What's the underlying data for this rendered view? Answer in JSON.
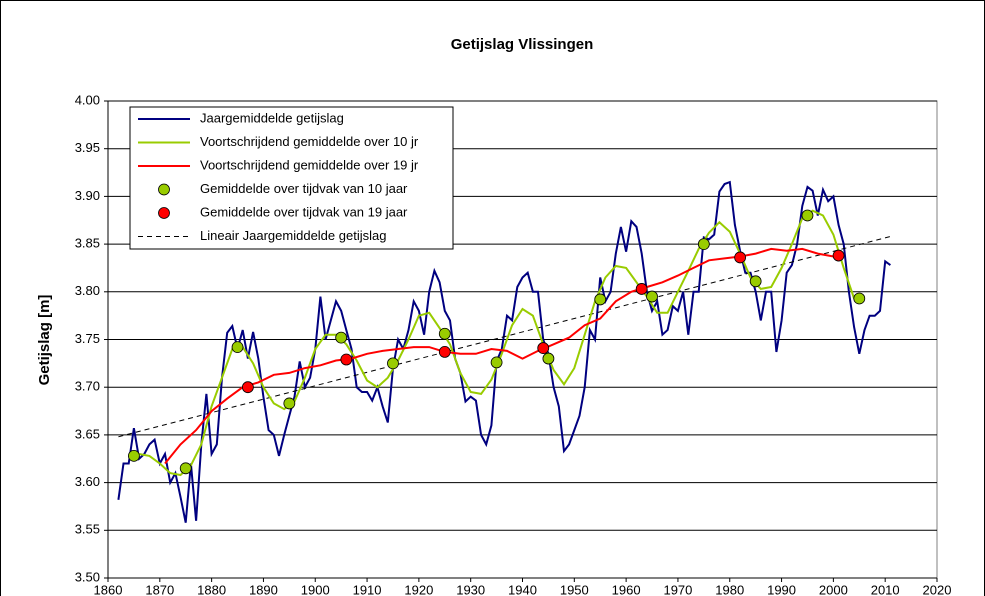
{
  "chart_data": {
    "type": "line",
    "title": "Getijslag Vlissingen",
    "y_label": "Getijslag [m]",
    "xlim": [
      1860,
      2020
    ],
    "xticks": [
      1860,
      1870,
      1880,
      1890,
      1900,
      1910,
      1920,
      1930,
      1940,
      1950,
      1960,
      1970,
      1980,
      1990,
      2000,
      2010,
      2020
    ],
    "ylim": [
      3.5,
      4.0
    ],
    "yticks": [
      {
        "value": 3.5,
        "label": "3.50"
      },
      {
        "value": 3.55,
        "label": "3.55"
      },
      {
        "value": 3.6,
        "label": "3.60"
      },
      {
        "value": 3.65,
        "label": "3.65"
      },
      {
        "value": 3.7,
        "label": "3.70"
      },
      {
        "value": 3.75,
        "label": "3.75"
      },
      {
        "value": 3.8,
        "label": "3.80"
      },
      {
        "value": 3.85,
        "label": "3.85"
      },
      {
        "value": 3.9,
        "label": "3.90"
      },
      {
        "value": 3.95,
        "label": "3.95"
      },
      {
        "value": 4.0,
        "label": "4.00"
      }
    ],
    "grid": true,
    "legend": "top-left",
    "series": [
      {
        "name": "Jaargemiddelde getijslag",
        "color": "#000080",
        "style": "line",
        "x": [
          1862,
          1863,
          1864,
          1865,
          1866,
          1867,
          1868,
          1869,
          1870,
          1871,
          1872,
          1873,
          1874,
          1875,
          1876,
          1877,
          1878,
          1879,
          1880,
          1881,
          1882,
          1883,
          1884,
          1885,
          1886,
          1887,
          1888,
          1889,
          1890,
          1891,
          1892,
          1893,
          1894,
          1895,
          1896,
          1897,
          1898,
          1899,
          1900,
          1901,
          1902,
          1903,
          1904,
          1905,
          1906,
          1907,
          1908,
          1909,
          1910,
          1911,
          1912,
          1913,
          1914,
          1915,
          1916,
          1917,
          1918,
          1919,
          1920,
          1921,
          1922,
          1923,
          1924,
          1925,
          1926,
          1927,
          1928,
          1929,
          1930,
          1931,
          1932,
          1933,
          1934,
          1935,
          1936,
          1937,
          1938,
          1939,
          1940,
          1941,
          1942,
          1943,
          1944,
          1945,
          1946,
          1947,
          1948,
          1949,
          1950,
          1951,
          1952,
          1953,
          1954,
          1955,
          1956,
          1957,
          1958,
          1959,
          1960,
          1961,
          1962,
          1963,
          1964,
          1965,
          1966,
          1967,
          1968,
          1969,
          1970,
          1971,
          1972,
          1973,
          1974,
          1975,
          1976,
          1977,
          1978,
          1979,
          1980,
          1981,
          1982,
          1983,
          1984,
          1985,
          1986,
          1987,
          1988,
          1989,
          1990,
          1991,
          1992,
          1993,
          1994,
          1995,
          1996,
          1997,
          1998,
          1999,
          2000,
          2001,
          2002,
          2003,
          2004,
          2005,
          2006,
          2007,
          2008,
          2009,
          2010,
          2011
        ],
        "values": [
          3.582,
          3.62,
          3.62,
          3.657,
          3.625,
          3.63,
          3.64,
          3.645,
          3.62,
          3.63,
          3.6,
          3.61,
          3.585,
          3.558,
          3.62,
          3.56,
          3.64,
          3.693,
          3.63,
          3.64,
          3.71,
          3.757,
          3.764,
          3.74,
          3.76,
          3.73,
          3.758,
          3.73,
          3.69,
          3.655,
          3.65,
          3.628,
          3.65,
          3.67,
          3.69,
          3.727,
          3.7,
          3.71,
          3.74,
          3.795,
          3.75,
          3.77,
          3.79,
          3.78,
          3.76,
          3.74,
          3.7,
          3.695,
          3.695,
          3.686,
          3.7,
          3.68,
          3.663,
          3.72,
          3.75,
          3.74,
          3.76,
          3.79,
          3.78,
          3.755,
          3.8,
          3.822,
          3.81,
          3.78,
          3.77,
          3.73,
          3.715,
          3.685,
          3.69,
          3.686,
          3.65,
          3.64,
          3.66,
          3.727,
          3.74,
          3.775,
          3.77,
          3.805,
          3.815,
          3.82,
          3.8,
          3.8,
          3.75,
          3.735,
          3.7,
          3.68,
          3.633,
          3.64,
          3.655,
          3.67,
          3.7,
          3.76,
          3.75,
          3.815,
          3.79,
          3.8,
          3.84,
          3.868,
          3.842,
          3.874,
          3.868,
          3.84,
          3.8,
          3.78,
          3.79,
          3.755,
          3.76,
          3.785,
          3.78,
          3.8,
          3.755,
          3.8,
          3.8,
          3.857,
          3.855,
          3.86,
          3.905,
          3.913,
          3.915,
          3.87,
          3.843,
          3.82,
          3.82,
          3.8,
          3.77,
          3.8,
          3.8,
          3.737,
          3.77,
          3.82,
          3.828,
          3.85,
          3.89,
          3.91,
          3.906,
          3.88,
          3.907,
          3.895,
          3.9,
          3.87,
          3.85,
          3.8,
          3.763,
          3.735,
          3.76,
          3.775,
          3.775,
          3.78,
          3.832,
          3.828
        ]
      },
      {
        "name": "Voortschrijdend gemiddelde over 10 jr",
        "color": "#99cc00",
        "style": "line",
        "x": [
          1866,
          1868,
          1870,
          1872,
          1874,
          1876,
          1878,
          1880,
          1882,
          1884,
          1886,
          1888,
          1890,
          1892,
          1894,
          1896,
          1898,
          1900,
          1902,
          1904,
          1906,
          1908,
          1910,
          1912,
          1914,
          1916,
          1918,
          1920,
          1922,
          1924,
          1926,
          1928,
          1930,
          1932,
          1934,
          1936,
          1938,
          1940,
          1942,
          1944,
          1946,
          1948,
          1950,
          1952,
          1954,
          1956,
          1958,
          1960,
          1962,
          1964,
          1966,
          1968,
          1970,
          1972,
          1974,
          1976,
          1978,
          1980,
          1982,
          1984,
          1986,
          1988,
          1990,
          1992,
          1994,
          1996,
          1998,
          2000,
          2002,
          2004
        ],
        "values": [
          3.63,
          3.628,
          3.62,
          3.61,
          3.608,
          3.618,
          3.64,
          3.68,
          3.71,
          3.74,
          3.742,
          3.725,
          3.7,
          3.683,
          3.677,
          3.685,
          3.71,
          3.74,
          3.755,
          3.755,
          3.745,
          3.728,
          3.707,
          3.7,
          3.71,
          3.728,
          3.75,
          3.775,
          3.778,
          3.762,
          3.745,
          3.715,
          3.695,
          3.693,
          3.708,
          3.735,
          3.765,
          3.782,
          3.775,
          3.745,
          3.718,
          3.703,
          3.72,
          3.755,
          3.79,
          3.815,
          3.827,
          3.825,
          3.81,
          3.795,
          3.778,
          3.778,
          3.8,
          3.822,
          3.845,
          3.862,
          3.873,
          3.863,
          3.84,
          3.815,
          3.803,
          3.805,
          3.825,
          3.85,
          3.877,
          3.885,
          3.88,
          3.86,
          3.825,
          3.793
        ]
      },
      {
        "name": "Voortschrijdend gemiddelde over 19 jr",
        "color": "#ff0000",
        "style": "line",
        "x": [
          1871,
          1874,
          1877,
          1880,
          1883,
          1886,
          1889,
          1892,
          1895,
          1898,
          1901,
          1904,
          1907,
          1910,
          1913,
          1916,
          1919,
          1922,
          1925,
          1928,
          1931,
          1934,
          1937,
          1940,
          1943,
          1946,
          1949,
          1952,
          1955,
          1958,
          1961,
          1964,
          1967,
          1970,
          1973,
          1976,
          1979,
          1982,
          1985,
          1988,
          1991,
          1994,
          1997,
          2000,
          2002
        ],
        "values": [
          3.62,
          3.64,
          3.655,
          3.675,
          3.688,
          3.7,
          3.705,
          3.713,
          3.715,
          3.72,
          3.723,
          3.728,
          3.73,
          3.735,
          3.738,
          3.74,
          3.742,
          3.742,
          3.737,
          3.735,
          3.735,
          3.74,
          3.738,
          3.73,
          3.738,
          3.745,
          3.752,
          3.765,
          3.772,
          3.79,
          3.8,
          3.805,
          3.81,
          3.817,
          3.825,
          3.833,
          3.835,
          3.837,
          3.84,
          3.845,
          3.843,
          3.845,
          3.84,
          3.837,
          3.838
        ]
      },
      {
        "name": "Gemiddelde over tijdvak van 10 jaar",
        "color": "#99cc00",
        "style": "markers",
        "x": [
          1865,
          1875,
          1885,
          1895,
          1905,
          1915,
          1925,
          1935,
          1945,
          1955,
          1965,
          1975,
          1985,
          1995,
          2005
        ],
        "values": [
          3.628,
          3.615,
          3.742,
          3.683,
          3.752,
          3.725,
          3.756,
          3.726,
          3.73,
          3.792,
          3.795,
          3.85,
          3.811,
          3.88,
          3.793
        ]
      },
      {
        "name": "Gemiddelde over tijdvak van 19 jaar",
        "color": "#ff0000",
        "style": "markers",
        "x": [
          1887,
          1906,
          1925,
          1944,
          1963,
          1982,
          2001
        ],
        "values": [
          3.7,
          3.729,
          3.737,
          3.741,
          3.803,
          3.836,
          3.838
        ]
      },
      {
        "name": "Lineair Jaargemiddelde getijslag",
        "color": "#000000",
        "style": "dashed",
        "x": [
          1862,
          2011
        ],
        "values": [
          3.648,
          3.858
        ]
      }
    ]
  }
}
